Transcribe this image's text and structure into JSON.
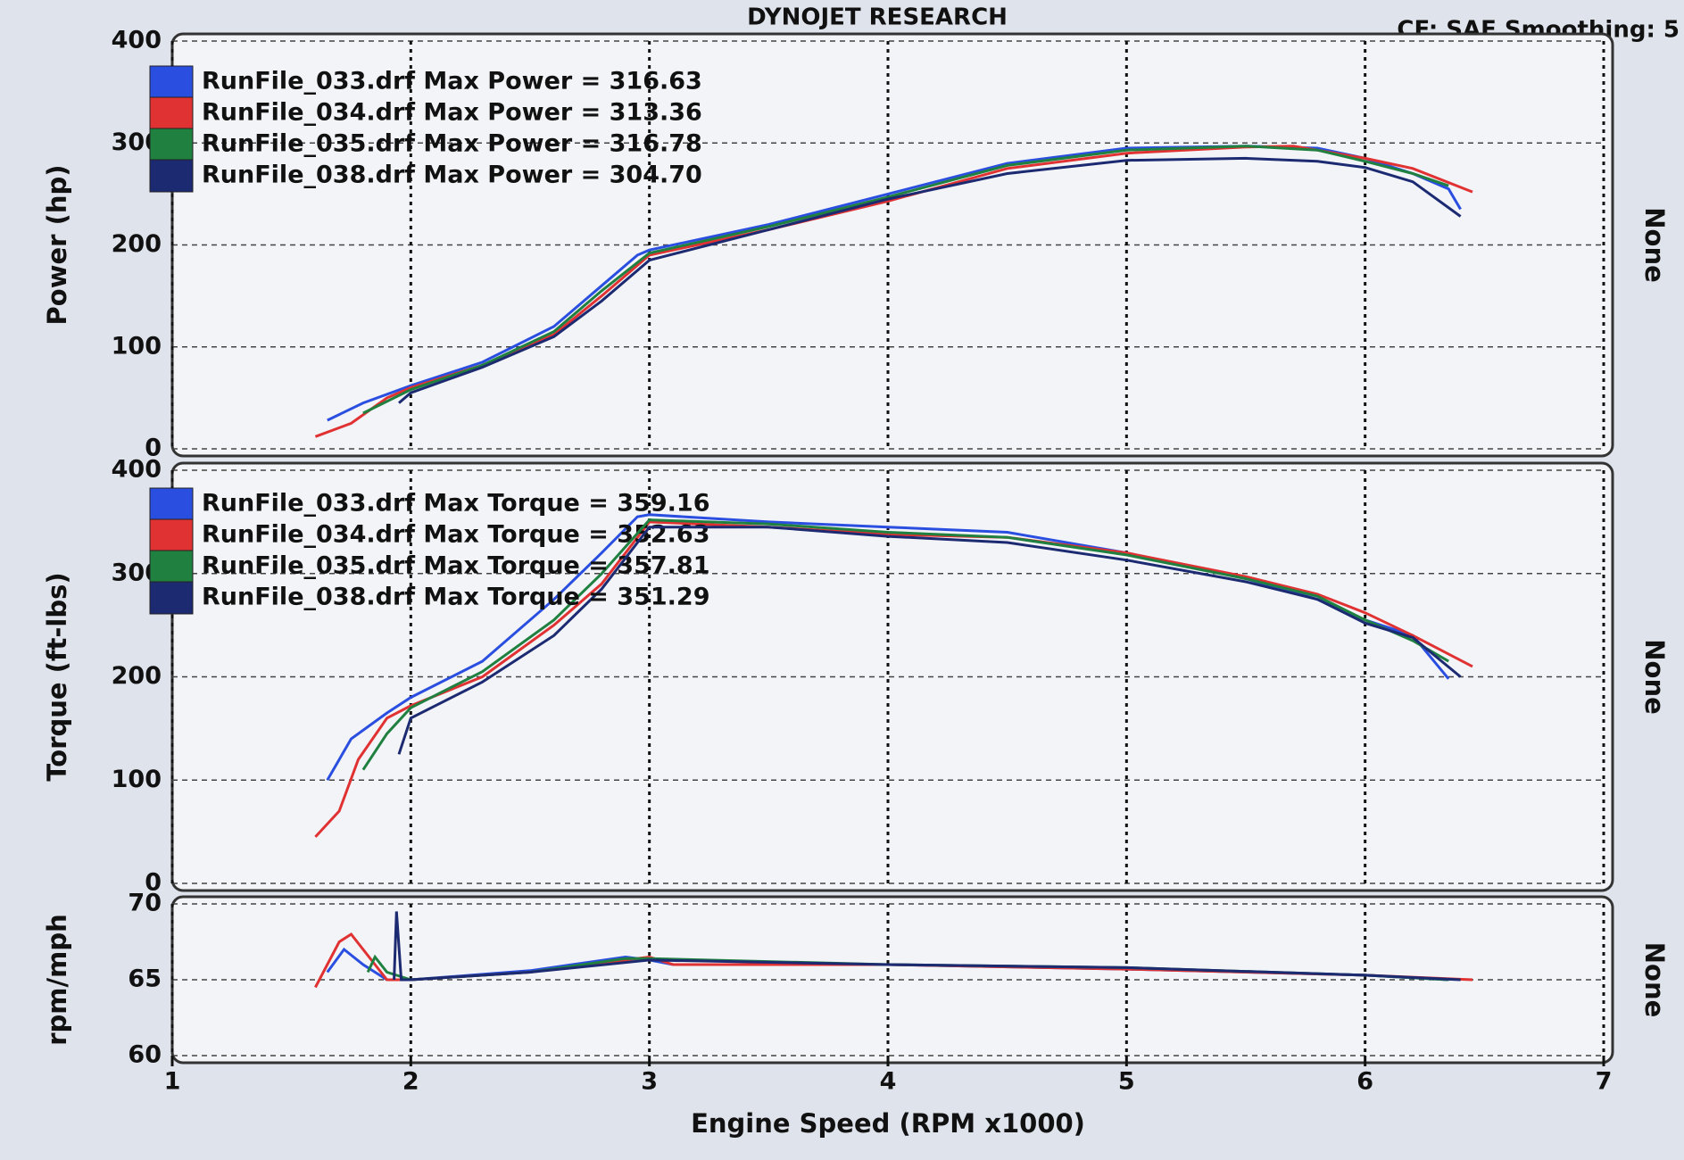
{
  "chart_data": [
    {
      "type": "line",
      "title": "DYNOJET RESEARCH",
      "subtitle": "CF: SAE  Smoothing: 5",
      "ylabel": "Power (hp)",
      "side_label": "None",
      "xlim": [
        1,
        7
      ],
      "xticks": [
        1,
        2,
        3,
        4,
        5,
        6,
        7
      ],
      "xtick_labels": false,
      "ylim": [
        0,
        400
      ],
      "yticks": [
        0,
        100,
        200,
        300,
        400
      ],
      "grid": true,
      "series": [
        {
          "name": "RunFile_033.drf Max Power = 316.63",
          "color": "#2a4fe0",
          "x": [
            1.65,
            1.8,
            2.0,
            2.3,
            2.6,
            2.8,
            2.95,
            3.0,
            3.5,
            4.0,
            4.5,
            5.0,
            5.5,
            5.8,
            6.0,
            6.2,
            6.35,
            6.4
          ],
          "values": [
            28,
            45,
            62,
            85,
            120,
            160,
            190,
            195,
            220,
            250,
            280,
            295,
            297,
            295,
            285,
            270,
            255,
            235
          ]
        },
        {
          "name": "RunFile_034.drf Max Power = 313.36",
          "color": "#e03232",
          "x": [
            1.6,
            1.75,
            1.9,
            2.0,
            2.3,
            2.6,
            2.8,
            3.0,
            3.5,
            4.0,
            4.5,
            5.0,
            5.5,
            5.7,
            6.0,
            6.2,
            6.45
          ],
          "values": [
            12,
            25,
            50,
            60,
            82,
            112,
            150,
            190,
            215,
            243,
            275,
            290,
            296,
            297,
            285,
            275,
            252
          ]
        },
        {
          "name": "RunFile_035.drf Max Power = 316.78",
          "color": "#1f8040",
          "x": [
            1.8,
            2.0,
            2.3,
            2.6,
            2.8,
            3.0,
            3.5,
            4.0,
            4.5,
            5.0,
            5.5,
            5.8,
            6.0,
            6.2,
            6.35
          ],
          "values": [
            35,
            58,
            82,
            115,
            155,
            192,
            218,
            247,
            278,
            293,
            297,
            293,
            282,
            270,
            258
          ]
        },
        {
          "name": "RunFile_038.drf Max Power = 304.70",
          "color": "#1c2a72",
          "x": [
            1.95,
            2.0,
            2.3,
            2.6,
            2.8,
            3.0,
            3.5,
            4.0,
            4.5,
            5.0,
            5.5,
            5.8,
            6.0,
            6.2,
            6.4
          ],
          "values": [
            45,
            55,
            80,
            110,
            145,
            185,
            215,
            245,
            270,
            283,
            285,
            282,
            276,
            262,
            228
          ]
        }
      ]
    },
    {
      "type": "line",
      "ylabel": "Torque (ft-lbs)",
      "side_label": "None",
      "xlim": [
        1,
        7
      ],
      "xticks": [
        1,
        2,
        3,
        4,
        5,
        6,
        7
      ],
      "xtick_labels": false,
      "ylim": [
        0,
        400
      ],
      "yticks": [
        0,
        100,
        200,
        300,
        400
      ],
      "grid": true,
      "series": [
        {
          "name": "RunFile_033.drf Max Torque = 359.16",
          "color": "#2a4fe0",
          "x": [
            1.65,
            1.75,
            1.9,
            2.0,
            2.3,
            2.6,
            2.8,
            2.95,
            3.0,
            3.5,
            4.0,
            4.5,
            5.0,
            5.5,
            5.8,
            6.0,
            6.2,
            6.35
          ],
          "values": [
            100,
            140,
            165,
            180,
            215,
            275,
            320,
            355,
            357,
            350,
            345,
            340,
            320,
            295,
            275,
            255,
            240,
            198
          ]
        },
        {
          "name": "RunFile_034.drf Max Torque = 352.63",
          "color": "#e03232",
          "x": [
            1.6,
            1.7,
            1.78,
            1.9,
            2.0,
            2.3,
            2.6,
            2.8,
            3.0,
            3.5,
            4.0,
            4.5,
            5.0,
            5.5,
            5.8,
            6.0,
            6.2,
            6.45
          ],
          "values": [
            45,
            70,
            120,
            160,
            172,
            200,
            250,
            290,
            350,
            345,
            338,
            335,
            320,
            297,
            280,
            262,
            240,
            210
          ]
        },
        {
          "name": "RunFile_035.drf Max Torque = 357.81",
          "color": "#1f8040",
          "x": [
            1.8,
            1.9,
            2.0,
            2.3,
            2.6,
            2.8,
            3.0,
            3.5,
            4.0,
            4.5,
            5.0,
            5.5,
            5.8,
            6.0,
            6.2,
            6.35
          ],
          "values": [
            110,
            145,
            170,
            205,
            255,
            300,
            352,
            348,
            340,
            335,
            318,
            295,
            278,
            255,
            235,
            215
          ]
        },
        {
          "name": "RunFile_038.drf Max Torque = 351.29",
          "color": "#1c2a72",
          "x": [
            1.95,
            2.0,
            2.3,
            2.6,
            2.8,
            3.0,
            3.5,
            4.0,
            4.5,
            5.0,
            5.5,
            5.8,
            6.0,
            6.2,
            6.4
          ],
          "values": [
            125,
            160,
            195,
            240,
            285,
            345,
            345,
            336,
            330,
            313,
            292,
            275,
            252,
            238,
            200
          ]
        }
      ]
    },
    {
      "type": "line",
      "ylabel": "rpm/mph",
      "side_label": "None",
      "xlabel": "Engine Speed (RPM x1000)",
      "xlim": [
        1,
        7
      ],
      "xticks": [
        1,
        2,
        3,
        4,
        5,
        6,
        7
      ],
      "xtick_labels": true,
      "ylim": [
        60,
        70
      ],
      "yticks": [
        60,
        65,
        70
      ],
      "grid": true,
      "series": [
        {
          "color": "#2a4fe0",
          "x": [
            1.65,
            1.72,
            1.8,
            1.9,
            2.0,
            2.5,
            2.9,
            3.0,
            3.1,
            4.0,
            5.0,
            6.0,
            6.35
          ],
          "values": [
            65.5,
            67,
            66,
            65,
            65,
            65.6,
            66.5,
            66.3,
            66,
            66,
            65.7,
            65.3,
            65
          ]
        },
        {
          "color": "#e03232",
          "x": [
            1.6,
            1.7,
            1.75,
            1.85,
            1.9,
            2.0,
            2.5,
            2.9,
            3.0,
            3.1,
            4.0,
            5.0,
            6.0,
            6.45
          ],
          "values": [
            64.5,
            67.5,
            68,
            66,
            65,
            65,
            65.5,
            66.3,
            66.5,
            66,
            66,
            65.7,
            65.3,
            65
          ]
        },
        {
          "color": "#1f8040",
          "x": [
            1.82,
            1.85,
            1.9,
            2.0,
            2.5,
            2.9,
            3.0,
            4.0,
            5.0,
            6.0,
            6.35
          ],
          "values": [
            65.5,
            66.5,
            65.5,
            65,
            65.5,
            66.4,
            66.4,
            66,
            65.8,
            65.3,
            65
          ]
        },
        {
          "color": "#1c2a72",
          "x": [
            1.93,
            1.94,
            1.96,
            2.0,
            2.5,
            3.0,
            4.0,
            5.0,
            6.0,
            6.4
          ],
          "values": [
            65,
            69.5,
            65,
            65,
            65.5,
            66.3,
            66,
            65.8,
            65.3,
            65
          ]
        }
      ]
    }
  ]
}
